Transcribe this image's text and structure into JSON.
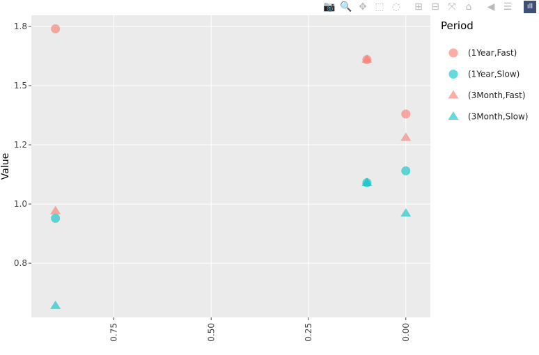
{
  "modebar": [
    {
      "name": "camera-icon",
      "glyph": "📷"
    },
    {
      "name": "zoom-icon",
      "glyph": "🔍"
    },
    {
      "name": "pan-icon",
      "glyph": "✥"
    },
    {
      "name": "box-select-icon",
      "glyph": "⬚"
    },
    {
      "name": "lasso-select-icon",
      "glyph": "◌"
    },
    {
      "name": "zoom-in-icon",
      "glyph": "⊞"
    },
    {
      "name": "zoom-out-icon",
      "glyph": "⊟"
    },
    {
      "name": "autoscale-icon",
      "glyph": "⤧"
    },
    {
      "name": "reset-axes-icon",
      "glyph": "⌂"
    },
    {
      "name": "hover-closest-icon",
      "glyph": "◀"
    },
    {
      "name": "hover-compare-icon",
      "glyph": "☰"
    },
    {
      "name": "plotly-logo-icon",
      "glyph": "ıll"
    }
  ],
  "chart_data": {
    "type": "scatter",
    "ylabel": "Value",
    "xlabel": "",
    "x_reversed": true,
    "xlim": [
      0.962,
      -0.063
    ],
    "ylim": [
      0.521,
      1.797
    ],
    "x_ticks": [
      {
        "v": 0.75,
        "label": "0.75"
      },
      {
        "v": 0.5,
        "label": "0.50"
      },
      {
        "v": 0.25,
        "label": "0.25"
      },
      {
        "v": 0,
        "label": "0.00"
      }
    ],
    "y_ticks": [
      {
        "v": 0.75,
        "label": "0.8"
      },
      {
        "v": 1.0,
        "label": "1.0"
      },
      {
        "v": 1.25,
        "label": "1.2"
      },
      {
        "v": 1.5,
        "label": "1.5"
      },
      {
        "v": 1.75,
        "label": "1.8"
      }
    ],
    "grid": true,
    "legend": {
      "title": "Period",
      "placement": "right"
    },
    "series": [
      {
        "name": "(1Year,Fast)",
        "symbol": "circle",
        "color": "#F8766D",
        "x": [
          0.9,
          0.1,
          0
        ],
        "y": [
          1.74,
          1.61,
          1.38
        ]
      },
      {
        "name": "(1Year,Slow)",
        "symbol": "circle",
        "color": "#00BFC4",
        "x": [
          0.9,
          0.1,
          0
        ],
        "y": [
          0.94,
          1.09,
          1.14
        ]
      },
      {
        "name": "(3Month,Fast)",
        "symbol": "triangle",
        "color": "#F8766D",
        "x": [
          0.9,
          0.1,
          0
        ],
        "y": [
          0.97,
          1.61,
          1.28
        ]
      },
      {
        "name": "(3Month,Slow)",
        "symbol": "triangle",
        "color": "#00BFC4",
        "x": [
          0.9,
          0.1,
          0
        ],
        "y": [
          0.57,
          1.09,
          0.96
        ]
      }
    ]
  }
}
